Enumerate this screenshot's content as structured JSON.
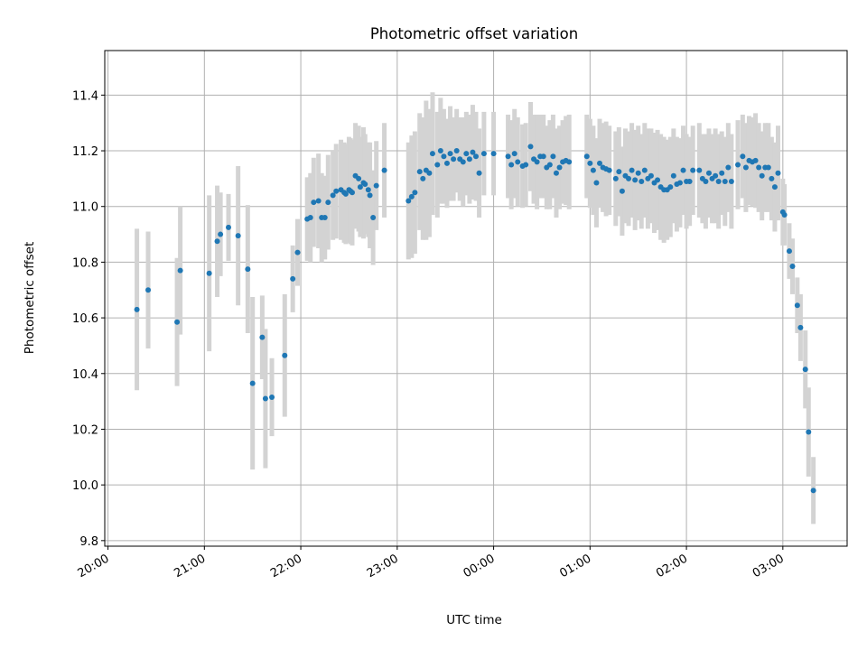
{
  "chart_data": {
    "type": "scatter",
    "title": "Photometric offset variation",
    "xlabel": "UTC time",
    "ylabel": "Photometric offset",
    "x_ticks": [
      "20:00",
      "21:00",
      "22:00",
      "23:00",
      "00:00",
      "01:00",
      "02:00",
      "03:00"
    ],
    "y_ticks": [
      "9.8",
      "10.0",
      "10.2",
      "10.4",
      "10.6",
      "10.8",
      "11.0",
      "11.2",
      "11.4"
    ],
    "xlim": [
      "19:58",
      "03:40"
    ],
    "ylim": [
      9.78,
      11.56
    ],
    "grid": true,
    "colors": {
      "points": "#1f77b4",
      "errorbars": "#d3d3d3",
      "grid": "#b0b0b0"
    },
    "series": [
      {
        "points": [
          {
            "t": "20:18",
            "y": 10.63,
            "e": 0.29
          },
          {
            "t": "20:25",
            "y": 10.7,
            "e": 0.21
          },
          {
            "t": "20:43",
            "y": 10.585,
            "e": 0.23
          },
          {
            "t": "20:45",
            "y": 10.77,
            "e": 0.23
          },
          {
            "t": "21:03",
            "y": 10.76,
            "e": 0.28
          },
          {
            "t": "21:08",
            "y": 10.875,
            "e": 0.2
          },
          {
            "t": "21:10",
            "y": 10.9,
            "e": 0.15
          },
          {
            "t": "21:15",
            "y": 10.925,
            "e": 0.12
          },
          {
            "t": "21:21",
            "y": 10.895,
            "e": 0.25
          },
          {
            "t": "21:27",
            "y": 10.775,
            "e": 0.23
          },
          {
            "t": "21:30",
            "y": 10.365,
            "e": 0.31
          },
          {
            "t": "21:36",
            "y": 10.53,
            "e": 0.15
          },
          {
            "t": "21:38",
            "y": 10.31,
            "e": 0.25
          },
          {
            "t": "21:42",
            "y": 10.315,
            "e": 0.14
          },
          {
            "t": "21:50",
            "y": 10.465,
            "e": 0.22
          },
          {
            "t": "21:55",
            "y": 10.74,
            "e": 0.12
          },
          {
            "t": "21:58",
            "y": 10.835,
            "e": 0.12
          },
          {
            "t": "22:04",
            "y": 10.955,
            "e": 0.15
          },
          {
            "t": "22:06",
            "y": 10.96,
            "e": 0.16
          },
          {
            "t": "22:08",
            "y": 11.015,
            "e": 0.16
          },
          {
            "t": "22:11",
            "y": 11.02,
            "e": 0.17
          },
          {
            "t": "22:13",
            "y": 10.96,
            "e": 0.16
          },
          {
            "t": "22:15",
            "y": 10.96,
            "e": 0.15
          },
          {
            "t": "22:17",
            "y": 11.015,
            "e": 0.17
          },
          {
            "t": "22:20",
            "y": 11.04,
            "e": 0.16
          },
          {
            "t": "22:22",
            "y": 11.055,
            "e": 0.17
          },
          {
            "t": "22:25",
            "y": 11.06,
            "e": 0.18
          },
          {
            "t": "22:27",
            "y": 11.05,
            "e": 0.18
          },
          {
            "t": "22:28",
            "y": 11.045,
            "e": 0.18
          },
          {
            "t": "22:30",
            "y": 11.06,
            "e": 0.19
          },
          {
            "t": "22:31",
            "y": 11.055,
            "e": 0.19
          },
          {
            "t": "22:32",
            "y": 11.05,
            "e": 0.19
          },
          {
            "t": "22:34",
            "y": 11.11,
            "e": 0.19
          },
          {
            "t": "22:36",
            "y": 11.1,
            "e": 0.19
          },
          {
            "t": "22:37",
            "y": 11.07,
            "e": 0.18
          },
          {
            "t": "22:39",
            "y": 11.085,
            "e": 0.2
          },
          {
            "t": "22:40",
            "y": 11.08,
            "e": 0.18
          },
          {
            "t": "22:42",
            "y": 11.06,
            "e": 0.17
          },
          {
            "t": "22:43",
            "y": 11.04,
            "e": 0.19
          },
          {
            "t": "22:45",
            "y": 10.96,
            "e": 0.17
          },
          {
            "t": "22:47",
            "y": 11.075,
            "e": 0.16
          },
          {
            "t": "22:52",
            "y": 11.13,
            "e": 0.17
          },
          {
            "t": "23:07",
            "y": 11.02,
            "e": 0.21
          },
          {
            "t": "23:09",
            "y": 11.035,
            "e": 0.22
          },
          {
            "t": "23:11",
            "y": 11.05,
            "e": 0.22
          },
          {
            "t": "23:14",
            "y": 11.125,
            "e": 0.21
          },
          {
            "t": "23:16",
            "y": 11.1,
            "e": 0.22
          },
          {
            "t": "23:18",
            "y": 11.13,
            "e": 0.25
          },
          {
            "t": "23:20",
            "y": 11.12,
            "e": 0.23
          },
          {
            "t": "23:22",
            "y": 11.19,
            "e": 0.22
          },
          {
            "t": "23:25",
            "y": 11.15,
            "e": 0.19
          },
          {
            "t": "23:27",
            "y": 11.2,
            "e": 0.19
          },
          {
            "t": "23:29",
            "y": 11.18,
            "e": 0.17
          },
          {
            "t": "23:31",
            "y": 11.155,
            "e": 0.16
          },
          {
            "t": "23:33",
            "y": 11.19,
            "e": 0.17
          },
          {
            "t": "23:35",
            "y": 11.17,
            "e": 0.15
          },
          {
            "t": "23:37",
            "y": 11.2,
            "e": 0.15
          },
          {
            "t": "23:39",
            "y": 11.17,
            "e": 0.15
          },
          {
            "t": "23:41",
            "y": 11.16,
            "e": 0.16
          },
          {
            "t": "23:43",
            "y": 11.19,
            "e": 0.15
          },
          {
            "t": "23:45",
            "y": 11.17,
            "e": 0.16
          },
          {
            "t": "23:47",
            "y": 11.195,
            "e": 0.17
          },
          {
            "t": "23:49",
            "y": 11.18,
            "e": 0.16
          },
          {
            "t": "23:51",
            "y": 11.12,
            "e": 0.16
          },
          {
            "t": "23:54",
            "y": 11.19,
            "e": 0.15
          },
          {
            "t": "00:00",
            "y": 11.19,
            "e": 0.15
          },
          {
            "t": "00:09",
            "y": 11.18,
            "e": 0.15
          },
          {
            "t": "00:11",
            "y": 11.15,
            "e": 0.16
          },
          {
            "t": "00:13",
            "y": 11.19,
            "e": 0.16
          },
          {
            "t": "00:15",
            "y": 11.16,
            "e": 0.16
          },
          {
            "t": "00:18",
            "y": 11.145,
            "e": 0.15
          },
          {
            "t": "00:20",
            "y": 11.15,
            "e": 0.15
          },
          {
            "t": "00:23",
            "y": 11.215,
            "e": 0.16
          },
          {
            "t": "00:25",
            "y": 11.17,
            "e": 0.16
          },
          {
            "t": "00:27",
            "y": 11.16,
            "e": 0.17
          },
          {
            "t": "00:29",
            "y": 11.18,
            "e": 0.15
          },
          {
            "t": "00:31",
            "y": 11.18,
            "e": 0.15
          },
          {
            "t": "00:33",
            "y": 11.14,
            "e": 0.15
          },
          {
            "t": "00:35",
            "y": 11.15,
            "e": 0.16
          },
          {
            "t": "00:37",
            "y": 11.18,
            "e": 0.15
          },
          {
            "t": "00:39",
            "y": 11.12,
            "e": 0.16
          },
          {
            "t": "00:41",
            "y": 11.14,
            "e": 0.15
          },
          {
            "t": "00:43",
            "y": 11.16,
            "e": 0.15
          },
          {
            "t": "00:45",
            "y": 11.165,
            "e": 0.16
          },
          {
            "t": "00:47",
            "y": 11.16,
            "e": 0.17
          },
          {
            "t": "00:58",
            "y": 11.18,
            "e": 0.15
          },
          {
            "t": "01:00",
            "y": 11.155,
            "e": 0.16
          },
          {
            "t": "01:02",
            "y": 11.13,
            "e": 0.16
          },
          {
            "t": "01:04",
            "y": 11.085,
            "e": 0.16
          },
          {
            "t": "01:06",
            "y": 11.155,
            "e": 0.16
          },
          {
            "t": "01:08",
            "y": 11.14,
            "e": 0.16
          },
          {
            "t": "01:10",
            "y": 11.135,
            "e": 0.17
          },
          {
            "t": "01:12",
            "y": 11.13,
            "e": 0.16
          },
          {
            "t": "01:16",
            "y": 11.1,
            "e": 0.17
          },
          {
            "t": "01:18",
            "y": 11.125,
            "e": 0.16
          },
          {
            "t": "01:20",
            "y": 11.055,
            "e": 0.16
          },
          {
            "t": "01:22",
            "y": 11.11,
            "e": 0.17
          },
          {
            "t": "01:24",
            "y": 11.1,
            "e": 0.17
          },
          {
            "t": "01:26",
            "y": 11.13,
            "e": 0.17
          },
          {
            "t": "01:28",
            "y": 11.095,
            "e": 0.18
          },
          {
            "t": "01:30",
            "y": 11.12,
            "e": 0.17
          },
          {
            "t": "01:32",
            "y": 11.09,
            "e": 0.17
          },
          {
            "t": "01:34",
            "y": 11.13,
            "e": 0.17
          },
          {
            "t": "01:36",
            "y": 11.1,
            "e": 0.18
          },
          {
            "t": "01:38",
            "y": 11.11,
            "e": 0.17
          },
          {
            "t": "01:40",
            "y": 11.085,
            "e": 0.18
          },
          {
            "t": "01:42",
            "y": 11.095,
            "e": 0.18
          },
          {
            "t": "01:44",
            "y": 11.07,
            "e": 0.19
          },
          {
            "t": "01:46",
            "y": 11.06,
            "e": 0.19
          },
          {
            "t": "01:48",
            "y": 11.06,
            "e": 0.18
          },
          {
            "t": "01:50",
            "y": 11.07,
            "e": 0.18
          },
          {
            "t": "01:52",
            "y": 11.11,
            "e": 0.17
          },
          {
            "t": "01:54",
            "y": 11.08,
            "e": 0.17
          },
          {
            "t": "01:56",
            "y": 11.085,
            "e": 0.16
          },
          {
            "t": "01:58",
            "y": 11.13,
            "e": 0.16
          },
          {
            "t": "02:00",
            "y": 11.09,
            "e": 0.17
          },
          {
            "t": "02:02",
            "y": 11.09,
            "e": 0.16
          },
          {
            "t": "02:04",
            "y": 11.13,
            "e": 0.16
          },
          {
            "t": "02:08",
            "y": 11.13,
            "e": 0.17
          },
          {
            "t": "02:10",
            "y": 11.1,
            "e": 0.16
          },
          {
            "t": "02:12",
            "y": 11.09,
            "e": 0.17
          },
          {
            "t": "02:14",
            "y": 11.12,
            "e": 0.16
          },
          {
            "t": "02:16",
            "y": 11.1,
            "e": 0.16
          },
          {
            "t": "02:18",
            "y": 11.11,
            "e": 0.17
          },
          {
            "t": "02:20",
            "y": 11.09,
            "e": 0.17
          },
          {
            "t": "02:22",
            "y": 11.12,
            "e": 0.15
          },
          {
            "t": "02:24",
            "y": 11.09,
            "e": 0.16
          },
          {
            "t": "02:26",
            "y": 11.14,
            "e": 0.16
          },
          {
            "t": "02:28",
            "y": 11.09,
            "e": 0.17
          },
          {
            "t": "02:32",
            "y": 11.15,
            "e": 0.16
          },
          {
            "t": "02:35",
            "y": 11.18,
            "e": 0.15
          },
          {
            "t": "02:37",
            "y": 11.14,
            "e": 0.16
          },
          {
            "t": "02:39",
            "y": 11.165,
            "e": 0.16
          },
          {
            "t": "02:41",
            "y": 11.16,
            "e": 0.16
          },
          {
            "t": "02:43",
            "y": 11.165,
            "e": 0.17
          },
          {
            "t": "02:45",
            "y": 11.14,
            "e": 0.16
          },
          {
            "t": "02:47",
            "y": 11.11,
            "e": 0.16
          },
          {
            "t": "02:49",
            "y": 11.14,
            "e": 0.16
          },
          {
            "t": "02:51",
            "y": 11.14,
            "e": 0.16
          },
          {
            "t": "02:53",
            "y": 11.1,
            "e": 0.15
          },
          {
            "t": "02:55",
            "y": 11.07,
            "e": 0.16
          },
          {
            "t": "02:57",
            "y": 11.12,
            "e": 0.17
          },
          {
            "t": "03:00",
            "y": 10.98,
            "e": 0.12
          },
          {
            "t": "03:01",
            "y": 10.97,
            "e": 0.11
          },
          {
            "t": "03:04",
            "y": 10.84,
            "e": 0.1
          },
          {
            "t": "03:06",
            "y": 10.785,
            "e": 0.1
          },
          {
            "t": "03:09",
            "y": 10.645,
            "e": 0.1
          },
          {
            "t": "03:11",
            "y": 10.565,
            "e": 0.12
          },
          {
            "t": "03:14",
            "y": 10.415,
            "e": 0.14
          },
          {
            "t": "03:16",
            "y": 10.19,
            "e": 0.16
          },
          {
            "t": "03:19",
            "y": 9.98,
            "e": 0.12
          }
        ]
      }
    ]
  }
}
